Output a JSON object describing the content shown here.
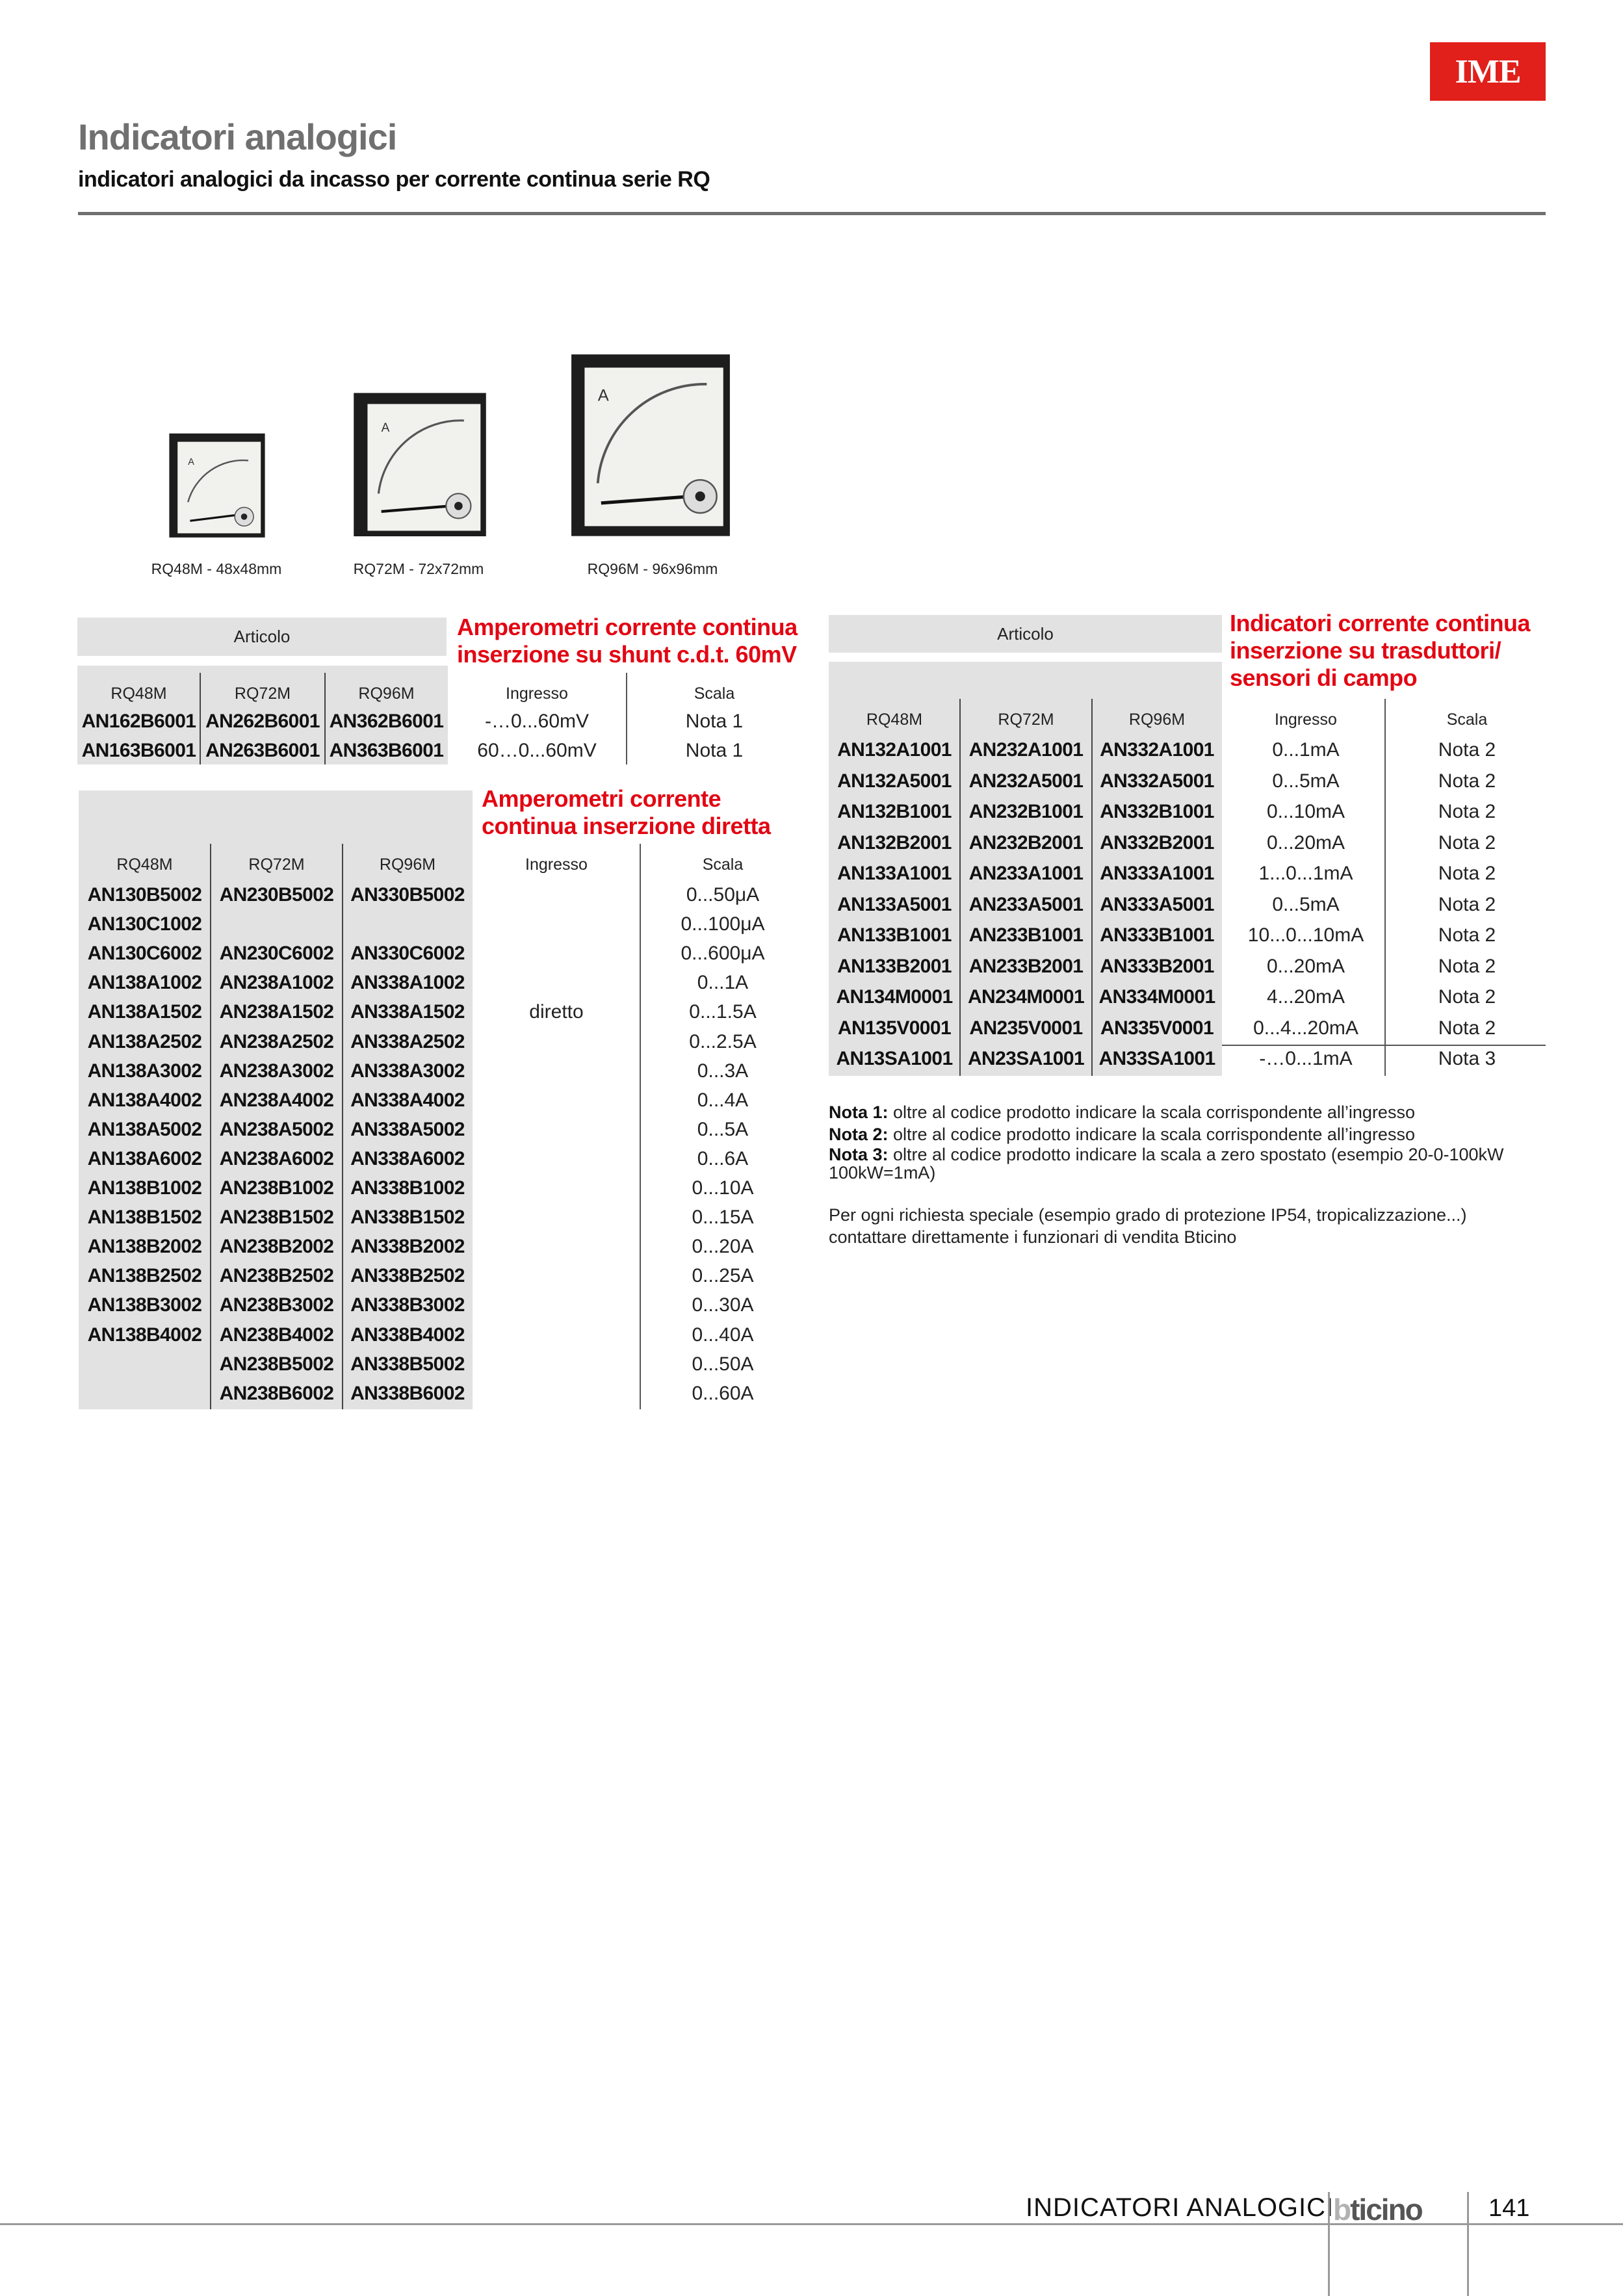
{
  "header": {
    "logo": "IME",
    "title": "Indicatori analogici",
    "subtitle": "indicatori analogici da incasso per corrente continua serie RQ"
  },
  "products": [
    {
      "caption": "RQ48M - 48x48mm"
    },
    {
      "caption": "RQ72M - 72x72mm"
    },
    {
      "caption": "RQ96M - 96x96mm"
    }
  ],
  "colors": {
    "accent": "#e30613",
    "logo_bg": "#e1201b",
    "table_bg": "#e2e2e2"
  },
  "tables": {
    "shunt": {
      "articolo": "Articolo",
      "title_lines": [
        "Amperometri corrente continua",
        "inserzione su shunt c.d.t. 60mV"
      ],
      "headers": [
        "RQ48M",
        "RQ72M",
        "RQ96M",
        "Ingresso",
        "Scala"
      ],
      "rows": [
        [
          "AN162B6001",
          "AN262B6001",
          "AN362B6001",
          "-…0...60mV",
          "Nota 1"
        ],
        [
          "AN163B6001",
          "AN263B6001",
          "AN363B6001",
          "60…0...60mV",
          "Nota 1"
        ]
      ]
    },
    "diretta": {
      "title_lines": [
        "Amperometri corrente",
        "continua  inserzione diretta"
      ],
      "headers": [
        "RQ48M",
        "RQ72M",
        "RQ96M",
        "Ingresso",
        "Scala"
      ],
      "ingresso": "diretto",
      "rows": [
        [
          "AN130B5002",
          "AN230B5002",
          "AN330B5002",
          "0...50μA"
        ],
        [
          "AN130C1002",
          "",
          "",
          "0...100μA"
        ],
        [
          "AN130C6002",
          "AN230C6002",
          "AN330C6002",
          "0...600μA"
        ],
        [
          "AN138A1002",
          "AN238A1002",
          "AN338A1002",
          "0...1A"
        ],
        [
          "AN138A1502",
          "AN238A1502",
          "AN338A1502",
          "0...1.5A"
        ],
        [
          "AN138A2502",
          "AN238A2502",
          "AN338A2502",
          "0...2.5A"
        ],
        [
          "AN138A3002",
          "AN238A3002",
          "AN338A3002",
          "0...3A"
        ],
        [
          "AN138A4002",
          "AN238A4002",
          "AN338A4002",
          "0...4A"
        ],
        [
          "AN138A5002",
          "AN238A5002",
          "AN338A5002",
          "0...5A"
        ],
        [
          "AN138A6002",
          "AN238A6002",
          "AN338A6002",
          "0...6A"
        ],
        [
          "AN138B1002",
          "AN238B1002",
          "AN338B1002",
          "0...10A"
        ],
        [
          "AN138B1502",
          "AN238B1502",
          "AN338B1502",
          "0...15A"
        ],
        [
          "AN138B2002",
          "AN238B2002",
          "AN338B2002",
          "0...20A"
        ],
        [
          "AN138B2502",
          "AN238B2502",
          "AN338B2502",
          "0...25A"
        ],
        [
          "AN138B3002",
          "AN238B3002",
          "AN338B3002",
          "0...30A"
        ],
        [
          "AN138B4002",
          "AN238B4002",
          "AN338B4002",
          "0...40A"
        ],
        [
          "",
          "AN238B5002",
          "AN338B5002",
          "0...50A"
        ],
        [
          "",
          "AN238B6002",
          "AN338B6002",
          "0...60A"
        ]
      ]
    },
    "trasduttori": {
      "articolo": "Articolo",
      "title_lines": [
        "Indicatori corrente continua",
        "inserzione su trasduttori/",
        "sensori di campo"
      ],
      "headers": [
        "RQ48M",
        "RQ72M",
        "RQ96M",
        "Ingresso",
        "Scala"
      ],
      "rows": [
        [
          "AN132A1001",
          "AN232A1001",
          "AN332A1001",
          "0...1mA",
          "Nota 2"
        ],
        [
          "AN132A5001",
          "AN232A5001",
          "AN332A5001",
          "0...5mA",
          "Nota 2"
        ],
        [
          "AN132B1001",
          "AN232B1001",
          "AN332B1001",
          "0...10mA",
          "Nota 2"
        ],
        [
          "AN132B2001",
          "AN232B2001",
          "AN332B2001",
          "0...20mA",
          "Nota 2"
        ],
        [
          "AN133A1001",
          "AN233A1001",
          "AN333A1001",
          "1...0...1mA",
          "Nota 2"
        ],
        [
          "AN133A5001",
          "AN233A5001",
          "AN333A5001",
          "0...5mA",
          "Nota 2"
        ],
        [
          "AN133B1001",
          "AN233B1001",
          "AN333B1001",
          "10...0...10mA",
          "Nota 2"
        ],
        [
          "AN133B2001",
          "AN233B2001",
          "AN333B2001",
          "0...20mA",
          "Nota 2"
        ],
        [
          "AN134M0001",
          "AN234M0001",
          "AN334M0001",
          "4...20mA",
          "Nota 2"
        ],
        [
          "AN135V0001",
          "AN235V0001",
          "AN335V0001",
          "0...4...20mA",
          "Nota 2"
        ],
        [
          "AN13SA1001",
          "AN23SA1001",
          "AN33SA1001",
          "-…0...1mA",
          "Nota 3"
        ]
      ]
    }
  },
  "notes": [
    {
      "label": "Nota 1:",
      "text": " oltre al codice prodotto indicare la scala corrispondente all’ingresso"
    },
    {
      "label": "Nota 2:",
      "text": " oltre al codice prodotto indicare la scala corrispondente all’ingresso"
    },
    {
      "label": "Nota 3:",
      "text": " oltre al codice prodotto indicare la scala a zero spostato (esempio 20-0-100kW 100kW=1mA)"
    }
  ],
  "special_request": [
    "Per ogni richiesta speciale (esempio grado di protezione IP54, tropicalizzazione...)",
    "contattare direttamente i funzionari di vendita Bticino"
  ],
  "footer": {
    "section": "INDICATORI ANALOGICI",
    "brand": "bticino",
    "page": "141"
  }
}
